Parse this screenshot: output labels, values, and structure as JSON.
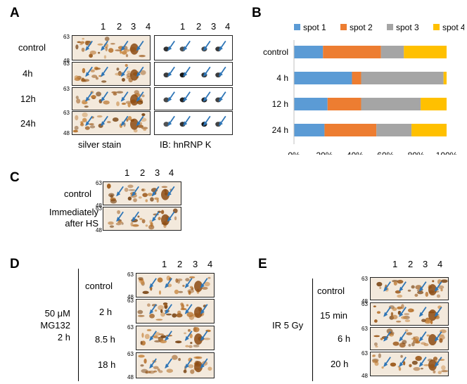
{
  "panels": {
    "A": {
      "letter": "A",
      "rows": [
        "control",
        "4h",
        "12h",
        "24h"
      ],
      "mw_top": "63",
      "mw_bottom": "48",
      "spot_numbers": [
        "1",
        "2",
        "3",
        "4"
      ],
      "caption_left": "silver stain",
      "caption_right": "IB:  hnRNP  K"
    },
    "B": {
      "letter": "B"
    },
    "C": {
      "letter": "C",
      "rows": [
        "control",
        "Immediately",
        "after HS"
      ],
      "mw_top": "63",
      "mw_bottom": "48",
      "spot_numbers": [
        "1",
        "2",
        "3",
        "4"
      ]
    },
    "D": {
      "letter": "D",
      "treatment": [
        "50 μM",
        "MG132",
        "2 h"
      ],
      "rows": [
        "control",
        "2 h",
        "8.5 h",
        "18 h"
      ],
      "mw_top": "63",
      "mw_bottom": "48",
      "spot_numbers": [
        "1",
        "2",
        "3",
        "4"
      ]
    },
    "E": {
      "letter": "E",
      "treatment": "IR  5 Gy",
      "rows": [
        "control",
        "15 min",
        "6 h",
        "20 h"
      ],
      "mw_top": "63",
      "mw_bottom": "48",
      "spot_numbers": [
        "1",
        "2",
        "3",
        "4"
      ]
    }
  },
  "chart_data": {
    "type": "bar",
    "orientation": "horizontal",
    "stacked": "percent",
    "categories": [
      "control",
      "4 h",
      "12 h",
      "24 h"
    ],
    "series": [
      {
        "name": "spot 1",
        "color": "#5b9bd5",
        "values": [
          19,
          38,
          22,
          20
        ]
      },
      {
        "name": "spot 2",
        "color": "#ed7d31",
        "values": [
          38,
          6,
          22,
          34
        ]
      },
      {
        "name": "spot 3",
        "color": "#a5a5a5",
        "values": [
          15,
          54,
          39,
          23
        ]
      },
      {
        "name": "spot 4",
        "color": "#ffc000",
        "values": [
          28,
          2,
          17,
          23
        ]
      }
    ],
    "xticks": [
      "0%",
      "20%",
      "40%",
      "60%",
      "80%",
      "100%"
    ],
    "xlim": [
      0,
      100
    ],
    "legend": "top"
  }
}
